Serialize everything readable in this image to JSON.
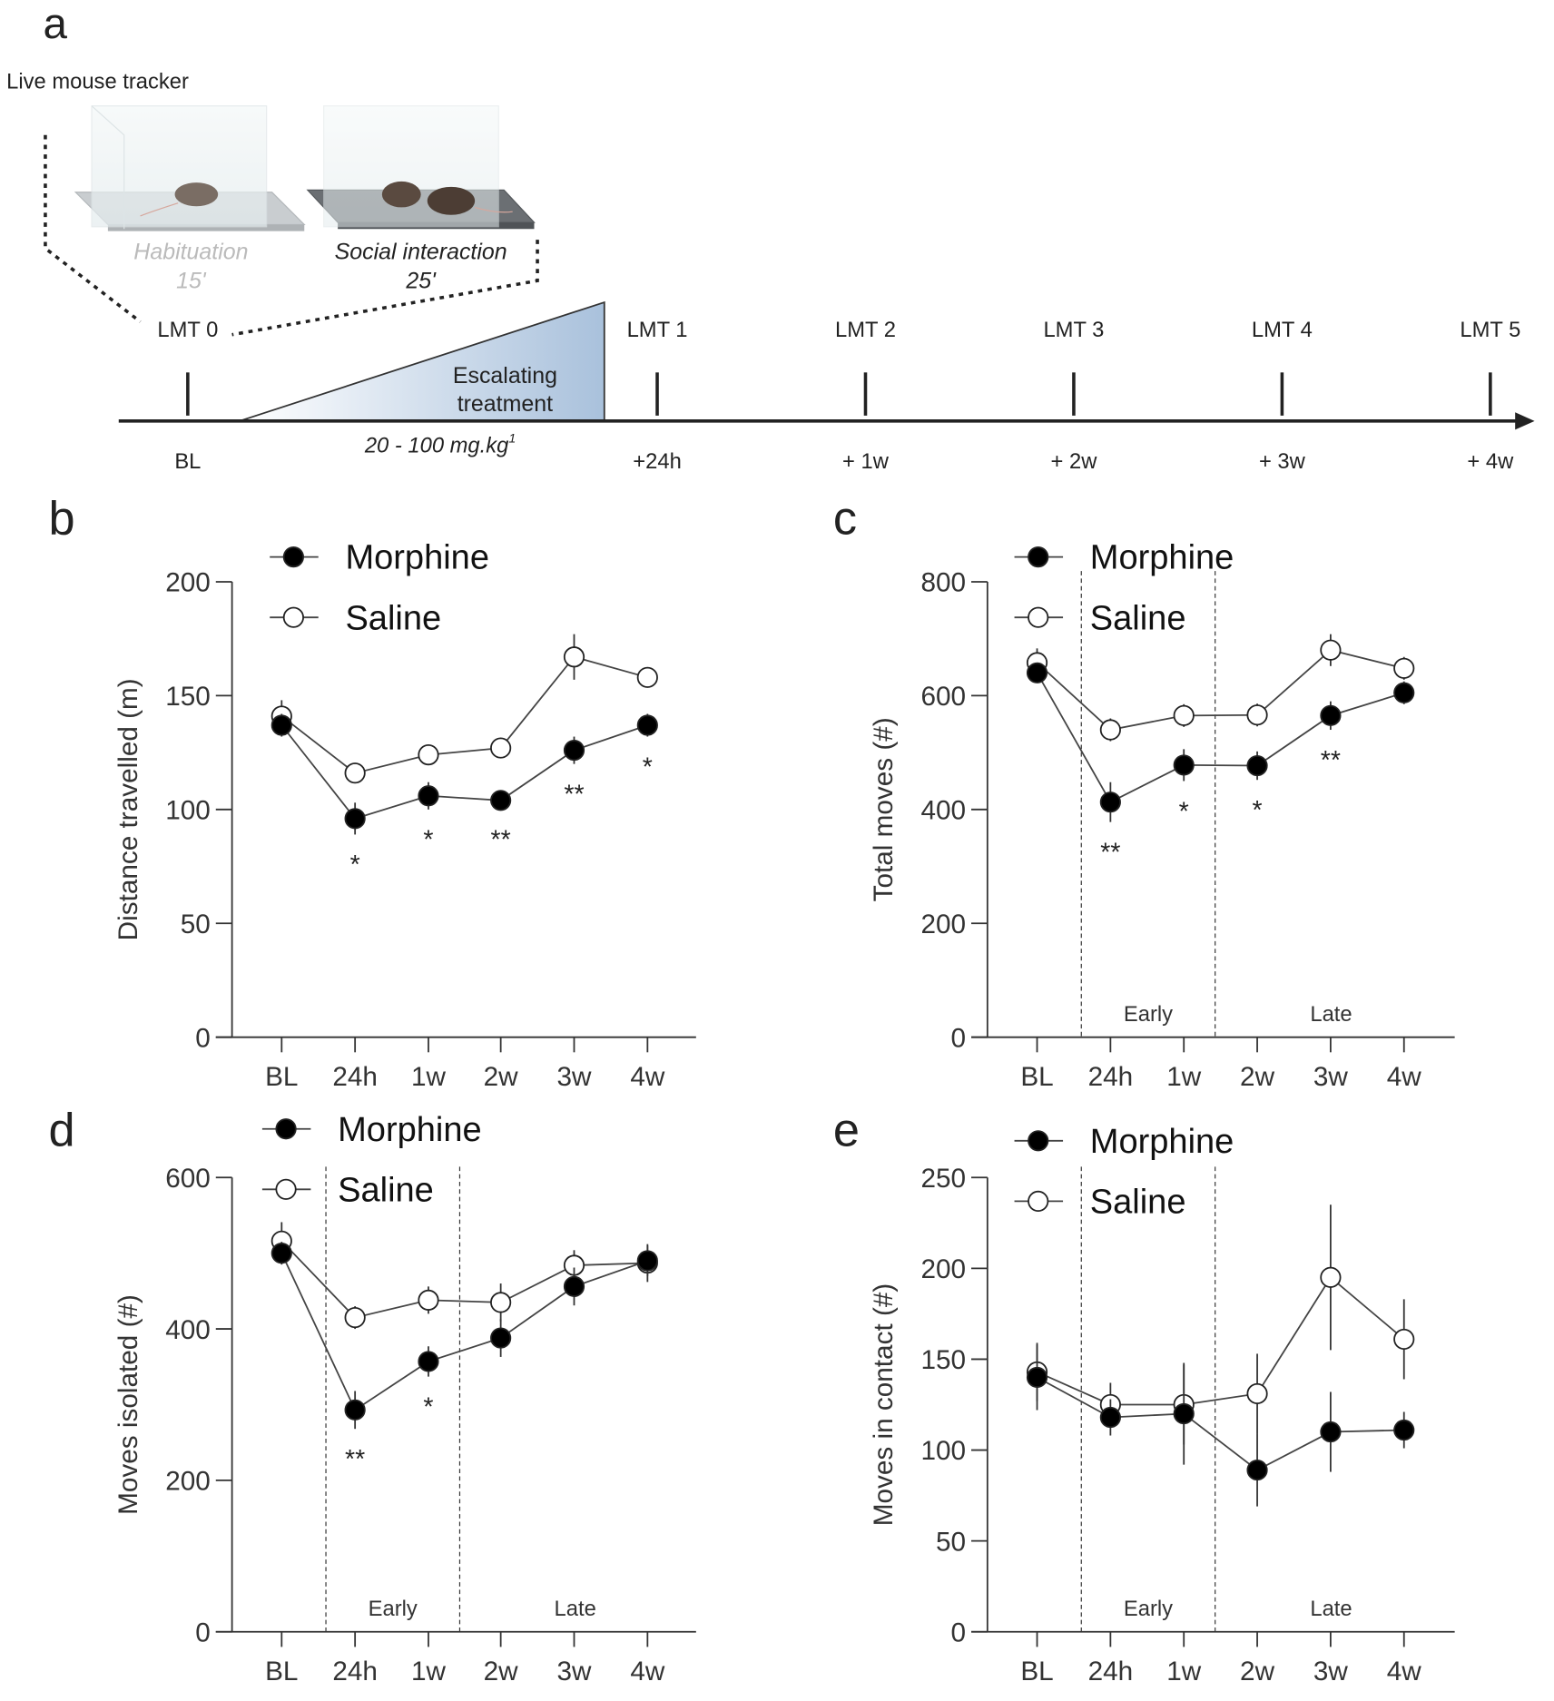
{
  "panel_letters": [
    "a",
    "b",
    "c",
    "d",
    "e"
  ],
  "schematic": {
    "title": "Live mouse tracker",
    "habituation": {
      "label": "Habituation",
      "duration": "15'"
    },
    "social": {
      "label": "Social interaction",
      "duration": "25'"
    },
    "treatment": {
      "label_line1": "Escalating",
      "label_line2": "treatment",
      "dose": "20 - 100 mg.kg",
      "dose_sup": "1"
    },
    "sessions": [
      "LMT 0",
      "LMT 1",
      "LMT 2",
      "LMT 3",
      "LMT 4",
      "LMT 5"
    ],
    "times": [
      "BL",
      "+24h",
      "+ 1w",
      "+ 2w",
      "+ 3w",
      "+ 4w"
    ]
  },
  "chart_data": [
    {
      "id": "b",
      "type": "line",
      "ylabel": "Distance travelled (m)",
      "ylim": [
        0,
        200
      ],
      "yticks": [
        0,
        50,
        100,
        150,
        200
      ],
      "categories": [
        "BL",
        "24h",
        "1w",
        "2w",
        "3w",
        "4w"
      ],
      "legend": "top-left",
      "series": [
        {
          "name": "Morphine",
          "marker": "filled",
          "values": [
            137,
            96,
            106,
            104,
            126,
            137
          ],
          "errors": [
            5,
            7,
            6,
            4,
            6,
            5
          ]
        },
        {
          "name": "Saline",
          "marker": "open",
          "values": [
            141,
            116,
            124,
            127,
            167,
            158
          ],
          "errors": [
            7,
            4,
            4,
            4,
            10,
            4
          ]
        }
      ],
      "significance": [
        "",
        "*",
        "*",
        "**",
        "**",
        "*"
      ],
      "periods": []
    },
    {
      "id": "c",
      "type": "line",
      "ylabel": "Total moves (#)",
      "ylim": [
        0,
        800
      ],
      "yticks": [
        0,
        200,
        400,
        600,
        800
      ],
      "categories": [
        "BL",
        "24h",
        "1w",
        "2w",
        "3w",
        "4w"
      ],
      "legend": "top-left",
      "series": [
        {
          "name": "Morphine",
          "marker": "filled",
          "values": [
            640,
            413,
            478,
            477,
            565,
            605
          ],
          "errors": [
            15,
            35,
            28,
            25,
            25,
            20
          ]
        },
        {
          "name": "Saline",
          "marker": "open",
          "values": [
            658,
            540,
            565,
            566,
            680,
            648
          ],
          "errors": [
            25,
            20,
            20,
            20,
            28,
            20
          ]
        }
      ],
      "significance": [
        "",
        "**",
        "*",
        "*",
        "**",
        ""
      ],
      "periods": [
        "Early",
        "Late"
      ]
    },
    {
      "id": "d",
      "type": "line",
      "ylabel": "Moves isolated (#)",
      "ylim": [
        0,
        600
      ],
      "yticks": [
        0,
        200,
        400,
        600
      ],
      "categories": [
        "BL",
        "24h",
        "1w",
        "2w",
        "3w",
        "4w"
      ],
      "legend": "top-left",
      "series": [
        {
          "name": "Morphine",
          "marker": "filled",
          "values": [
            500,
            293,
            357,
            388,
            456,
            490
          ],
          "errors": [
            15,
            25,
            20,
            25,
            25,
            20
          ]
        },
        {
          "name": "Saline",
          "marker": "open",
          "values": [
            516,
            415,
            438,
            435,
            484,
            487
          ],
          "errors": [
            25,
            15,
            18,
            25,
            20,
            25
          ]
        }
      ],
      "significance": [
        "",
        "**",
        "*",
        "",
        "",
        ""
      ],
      "periods": [
        "Early",
        "Late"
      ]
    },
    {
      "id": "e",
      "type": "line",
      "ylabel": "Moves in contact (#)",
      "ylim": [
        0,
        250
      ],
      "yticks": [
        0,
        50,
        100,
        150,
        200,
        250
      ],
      "categories": [
        "BL",
        "24h",
        "1w",
        "2w",
        "3w",
        "4w"
      ],
      "legend": "top-left",
      "series": [
        {
          "name": "Morphine",
          "marker": "filled",
          "values": [
            140,
            118,
            120,
            89,
            110,
            111
          ],
          "errors": [
            18,
            10,
            28,
            20,
            22,
            10
          ]
        },
        {
          "name": "Saline",
          "marker": "open",
          "values": [
            143,
            125,
            125,
            131,
            195,
            161
          ],
          "errors": [
            16,
            12,
            22,
            22,
            40,
            22
          ]
        }
      ],
      "significance": [
        "",
        "",
        "",
        "",
        "",
        ""
      ],
      "periods": [
        "Early",
        "Late"
      ]
    }
  ]
}
